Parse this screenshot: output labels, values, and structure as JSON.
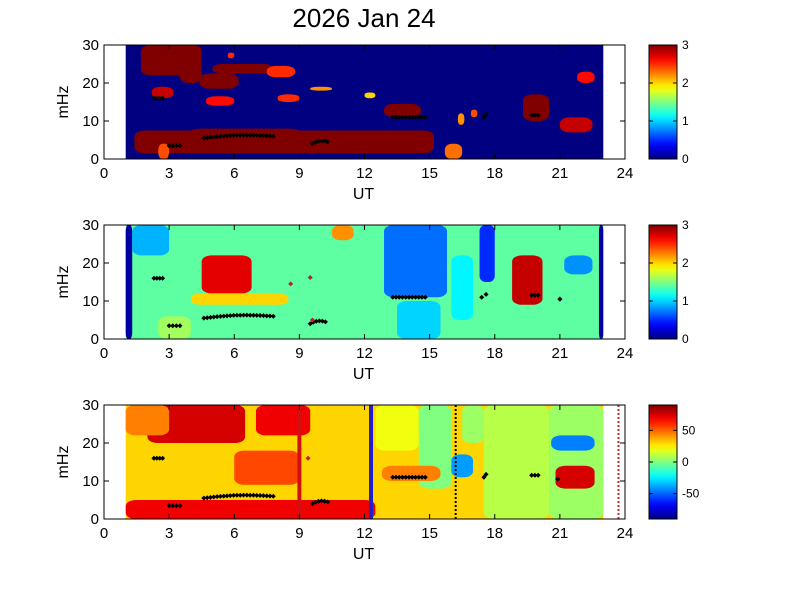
{
  "figure": {
    "title": "2026 Jan 24"
  },
  "chart_data": [
    {
      "type": "heatmap",
      "name": "panel-1",
      "xlabel": "UT",
      "ylabel": "mHz",
      "xlim": [
        0,
        24
      ],
      "ylim": [
        0,
        30
      ],
      "xticks": [
        "0",
        "3",
        "6",
        "9",
        "12",
        "15",
        "18",
        "21",
        "24"
      ],
      "yticks": [
        "0",
        "10",
        "20",
        "30"
      ],
      "data_x_range": [
        1,
        23
      ],
      "colorbar": {
        "min": 0,
        "max": 3,
        "ticks": [
          "0",
          "1",
          "2",
          "3"
        ],
        "colormap": "jet"
      },
      "background_level": 0,
      "blobs": [
        {
          "x": [
            1.7,
            4.2
          ],
          "y": [
            22,
            30
          ],
          "level": 3
        },
        {
          "x": [
            3.5,
            4.5
          ],
          "y": [
            20,
            30
          ],
          "level": 3
        },
        {
          "x": [
            5.0,
            7.8
          ],
          "y": [
            22.5,
            25.0
          ],
          "level": 3
        },
        {
          "x": [
            5.7,
            6.0
          ],
          "y": [
            26.5,
            28
          ],
          "level": 2.5
        },
        {
          "x": [
            7.5,
            8.8
          ],
          "y": [
            21.5,
            24.5
          ],
          "level": 2.5
        },
        {
          "x": [
            4.4,
            6.2
          ],
          "y": [
            18.5,
            22.5
          ],
          "level": 3
        },
        {
          "x": [
            2.2,
            3.2
          ],
          "y": [
            16,
            19
          ],
          "level": 2.8
        },
        {
          "x": [
            4.7,
            6.0
          ],
          "y": [
            14,
            16.5
          ],
          "level": 2.6
        },
        {
          "x": [
            8.0,
            9.0
          ],
          "y": [
            15,
            17
          ],
          "level": 2.5
        },
        {
          "x": [
            9.5,
            10.5
          ],
          "y": [
            18,
            19
          ],
          "level": 2.2
        },
        {
          "x": [
            12.0,
            12.5
          ],
          "y": [
            16,
            17.5
          ],
          "level": 2.0
        },
        {
          "x": [
            12.9,
            14.6
          ],
          "y": [
            11,
            14.5
          ],
          "level": 3
        },
        {
          "x": [
            1.4,
            15.2
          ],
          "y": [
            1.5,
            7.5
          ],
          "level": 3
        },
        {
          "x": [
            4.0,
            9.0
          ],
          "y": [
            6.0,
            8.0
          ],
          "level": 3
        },
        {
          "x": [
            2.5,
            3.0
          ],
          "y": [
            0,
            4
          ],
          "level": 2.4
        },
        {
          "x": [
            15.7,
            16.5
          ],
          "y": [
            0,
            4
          ],
          "level": 2.3
        },
        {
          "x": [
            16.3,
            16.6
          ],
          "y": [
            9,
            12
          ],
          "level": 2.2
        },
        {
          "x": [
            19.3,
            20.5
          ],
          "y": [
            10,
            17
          ],
          "level": 3
        },
        {
          "x": [
            21.0,
            22.5
          ],
          "y": [
            7,
            11
          ],
          "level": 2.8
        },
        {
          "x": [
            21.8,
            22.6
          ],
          "y": [
            20,
            23
          ],
          "level": 2.6
        },
        {
          "x": [
            16.9,
            17.2
          ],
          "y": [
            11,
            13
          ],
          "level": 2.4
        }
      ],
      "markers": [
        {
          "x": [
            3.0,
            3.5
          ],
          "y": [
            3.5,
            3.5
          ]
        },
        {
          "x": [
            4.6,
            7.8
          ],
          "y": [
            5.5,
            6.5
          ]
        },
        {
          "x": [
            9.6,
            10.3
          ],
          "y": [
            4,
            5
          ]
        },
        {
          "x": [
            13.3,
            14.8
          ],
          "y": [
            11,
            11
          ]
        },
        {
          "x": [
            17.5,
            17.6
          ],
          "y": [
            11,
            12.5
          ]
        },
        {
          "x": [
            2.3,
            2.7
          ],
          "y": [
            16,
            16
          ]
        },
        {
          "x": [
            19.7,
            20.0
          ],
          "y": [
            11.5,
            11.5
          ]
        }
      ],
      "vlines": []
    },
    {
      "type": "heatmap",
      "name": "panel-2",
      "xlabel": "UT",
      "ylabel": "mHz",
      "xlim": [
        0,
        24
      ],
      "ylim": [
        0,
        30
      ],
      "xticks": [
        "0",
        "3",
        "6",
        "9",
        "12",
        "15",
        "18",
        "21",
        "24"
      ],
      "yticks": [
        "0",
        "10",
        "20",
        "30"
      ],
      "data_x_range": [
        1,
        23
      ],
      "colorbar": {
        "min": 0,
        "max": 3,
        "ticks": [
          "0",
          "1",
          "2",
          "3"
        ],
        "colormap": "jet"
      },
      "background_level": 1.4,
      "blobs": [
        {
          "x": [
            1.0,
            1.3
          ],
          "y": [
            0,
            30
          ],
          "level": 0.1
        },
        {
          "x": [
            22.8,
            23.0
          ],
          "y": [
            0,
            30
          ],
          "level": 0.1
        },
        {
          "x": [
            1.3,
            3.0
          ],
          "y": [
            22,
            30
          ],
          "level": 0.9
        },
        {
          "x": [
            4.5,
            6.8
          ],
          "y": [
            12,
            22
          ],
          "level": 2.7
        },
        {
          "x": [
            4.0,
            8.5
          ],
          "y": [
            9,
            12
          ],
          "level": 2.0
        },
        {
          "x": [
            10.5,
            11.5
          ],
          "y": [
            26,
            30
          ],
          "level": 2.2
        },
        {
          "x": [
            12.9,
            15.8
          ],
          "y": [
            11,
            30
          ],
          "level": 0.7
        },
        {
          "x": [
            16.0,
            17.0
          ],
          "y": [
            5,
            22
          ],
          "level": 1.1
        },
        {
          "x": [
            17.3,
            18.0
          ],
          "y": [
            15,
            30
          ],
          "level": 0.5
        },
        {
          "x": [
            18.8,
            20.2
          ],
          "y": [
            9,
            22
          ],
          "level": 2.8
        },
        {
          "x": [
            21.2,
            22.5
          ],
          "y": [
            17,
            22
          ],
          "level": 0.8
        },
        {
          "x": [
            2.5,
            4.0
          ],
          "y": [
            0,
            6
          ],
          "level": 1.6
        },
        {
          "x": [
            13.5,
            15.5
          ],
          "y": [
            0,
            10
          ],
          "level": 1.0
        }
      ],
      "markers": [
        {
          "x": [
            3.0,
            3.5
          ],
          "y": [
            3.5,
            3.5
          ]
        },
        {
          "x": [
            4.6,
            7.8
          ],
          "y": [
            5.5,
            6.5
          ]
        },
        {
          "x": [
            9.5,
            10.2
          ],
          "y": [
            4,
            5
          ]
        },
        {
          "x": [
            13.3,
            14.8
          ],
          "y": [
            11,
            11
          ]
        },
        {
          "x": [
            17.4,
            17.6
          ],
          "y": [
            11,
            12.5
          ]
        },
        {
          "x": [
            2.3,
            2.7
          ],
          "y": [
            16,
            16
          ]
        },
        {
          "x": [
            19.7,
            20.0
          ],
          "y": [
            11.5,
            11.5
          ]
        },
        {
          "x": [
            21.0,
            21.0
          ],
          "y": [
            10.5,
            10.5
          ]
        }
      ],
      "red_markers": [
        {
          "x": 8.6,
          "y": 14.5
        },
        {
          "x": 9.5,
          "y": 16.2
        },
        {
          "x": 9.6,
          "y": 5.0
        }
      ],
      "vlines": []
    },
    {
      "type": "heatmap",
      "name": "panel-3",
      "xlabel": "UT",
      "ylabel": "mHz",
      "xlim": [
        0,
        24
      ],
      "ylim": [
        0,
        30
      ],
      "xticks": [
        "0",
        "3",
        "6",
        "9",
        "12",
        "15",
        "18",
        "21",
        "24"
      ],
      "yticks": [
        "0",
        "10",
        "20",
        "30"
      ],
      "data_x_range": [
        1,
        23
      ],
      "colorbar": {
        "min": -90,
        "max": 90,
        "ticks": [
          "-50",
          "0",
          "50"
        ],
        "colormap": "jet"
      },
      "background_level": 30,
      "blobs": [
        {
          "x": [
            2.0,
            6.5
          ],
          "y": [
            20,
            30
          ],
          "level": 75
        },
        {
          "x": [
            7.0,
            9.5
          ],
          "y": [
            22,
            30
          ],
          "level": 70
        },
        {
          "x": [
            1.0,
            3.0
          ],
          "y": [
            22,
            30
          ],
          "level": 45
        },
        {
          "x": [
            1.0,
            12.5
          ],
          "y": [
            0,
            5
          ],
          "level": 70
        },
        {
          "x": [
            6.0,
            9.0
          ],
          "y": [
            9,
            18
          ],
          "level": 55
        },
        {
          "x": [
            12.5,
            14.5
          ],
          "y": [
            18,
            30
          ],
          "level": 20
        },
        {
          "x": [
            14.5,
            16.0
          ],
          "y": [
            8,
            30
          ],
          "level": 0
        },
        {
          "x": [
            16.0,
            17.0
          ],
          "y": [
            11,
            17
          ],
          "level": -40
        },
        {
          "x": [
            16.5,
            17.5
          ],
          "y": [
            20,
            30
          ],
          "level": 5
        },
        {
          "x": [
            17.5,
            20.5
          ],
          "y": [
            0,
            30
          ],
          "level": 10
        },
        {
          "x": [
            20.5,
            23.0
          ],
          "y": [
            0,
            30
          ],
          "level": 5
        },
        {
          "x": [
            20.6,
            22.6
          ],
          "y": [
            18,
            22
          ],
          "level": -45
        },
        {
          "x": [
            20.8,
            22.6
          ],
          "y": [
            8,
            14
          ],
          "level": 75
        },
        {
          "x": [
            12.8,
            15.5
          ],
          "y": [
            10,
            14
          ],
          "level": 45
        }
      ],
      "markers": [
        {
          "x": [
            3.0,
            3.5
          ],
          "y": [
            3.5,
            3.5
          ]
        },
        {
          "x": [
            4.6,
            7.8
          ],
          "y": [
            5.5,
            6.5
          ]
        },
        {
          "x": [
            9.6,
            10.3
          ],
          "y": [
            4,
            5
          ]
        },
        {
          "x": [
            13.3,
            14.8
          ],
          "y": [
            11,
            11
          ]
        },
        {
          "x": [
            17.5,
            17.6
          ],
          "y": [
            11,
            12.5
          ]
        },
        {
          "x": [
            2.3,
            2.7
          ],
          "y": [
            16,
            16
          ]
        },
        {
          "x": [
            19.7,
            20.0
          ],
          "y": [
            11.5,
            11.5
          ]
        },
        {
          "x": [
            20.9,
            20.9
          ],
          "y": [
            10.5,
            10.5
          ]
        }
      ],
      "red_markers": [
        {
          "x": 9.4,
          "y": 16
        }
      ],
      "vlines": [
        {
          "x": 9.0,
          "color": "#d01010",
          "style": "solid"
        },
        {
          "x": 12.3,
          "color": "#2020c8",
          "style": "solid"
        },
        {
          "x": 16.2,
          "color": "#000000",
          "style": "dotted"
        },
        {
          "x": 23.7,
          "color": "#c03030",
          "style": "dotted"
        }
      ]
    }
  ]
}
